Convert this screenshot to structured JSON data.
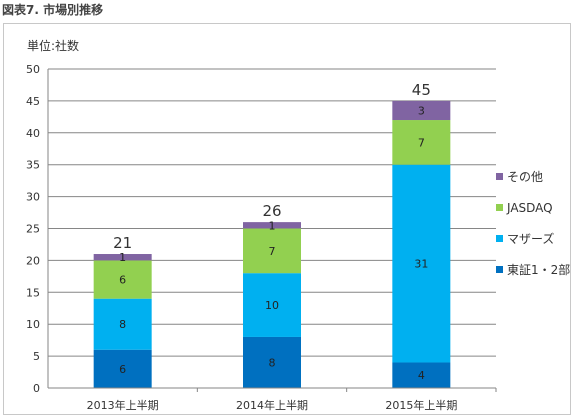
{
  "figure_title": "図表7. 市場別推移",
  "chart_data": {
    "type": "bar",
    "stacked": true,
    "unit_label": "単位:社数",
    "categories": [
      "2013年上半期",
      "2014年上半期",
      "2015年上半期"
    ],
    "series": [
      {
        "name": "東証1・2部",
        "color": "#0070c0",
        "values": [
          6,
          8,
          4
        ]
      },
      {
        "name": "マザーズ",
        "color": "#00b0f0",
        "values": [
          8,
          10,
          31
        ]
      },
      {
        "name": "JASDAQ",
        "color": "#92d050",
        "values": [
          6,
          7,
          7
        ]
      },
      {
        "name": "その他",
        "color": "#8064a2",
        "values": [
          1,
          1,
          3
        ]
      }
    ],
    "totals": [
      21,
      26,
      45
    ],
    "ylim": [
      0,
      50
    ],
    "yticks": [
      0,
      5,
      10,
      15,
      20,
      25,
      30,
      35,
      40,
      45,
      50
    ],
    "grid": true,
    "legend": "right"
  }
}
